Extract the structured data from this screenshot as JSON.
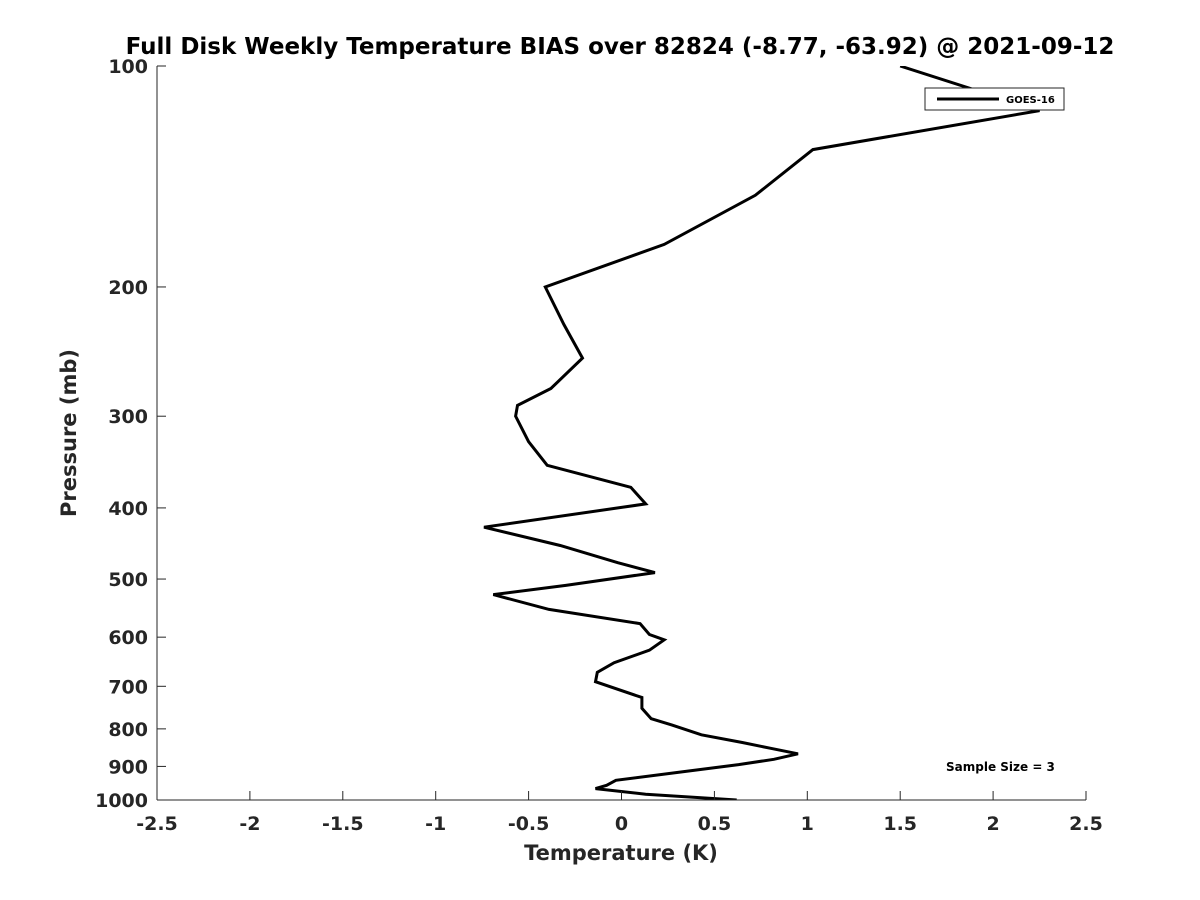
{
  "chart_data": {
    "type": "line",
    "title": "Full Disk Weekly Temperature BIAS over 82824 (-8.77, -63.92) @ 2021-09-12",
    "xlabel": "Temperature (K)",
    "ylabel": "Pressure (mb)",
    "xlim": [
      -2.5,
      2.5
    ],
    "ylim": [
      100,
      1000
    ],
    "y_scale": "log",
    "y_reversed": true,
    "grid": false,
    "x_ticks": [
      -2.5,
      -2,
      -1.5,
      -1,
      -0.5,
      0,
      0.5,
      1,
      1.5,
      2,
      2.5
    ],
    "x_tick_labels": [
      "-2.5",
      "-2",
      "-1.5",
      "-1",
      "-0.5",
      "0",
      "0.5",
      "1",
      "1.5",
      "2",
      "2.5"
    ],
    "y_ticks": [
      100,
      200,
      300,
      400,
      500,
      600,
      700,
      800,
      900,
      1000
    ],
    "y_tick_labels": [
      "100",
      "200",
      "300",
      "400",
      "500",
      "600",
      "700",
      "800",
      "900",
      "1000"
    ],
    "legend_position": "top-right",
    "annotation": "Sample Size = 3",
    "series": [
      {
        "name": "GOES-16",
        "color": "#000000",
        "points": [
          {
            "x": 1.5,
            "y": 100
          },
          {
            "x": 2.25,
            "y": 115
          },
          {
            "x": 1.03,
            "y": 130
          },
          {
            "x": 0.72,
            "y": 150
          },
          {
            "x": 0.23,
            "y": 175
          },
          {
            "x": -0.41,
            "y": 200
          },
          {
            "x": -0.31,
            "y": 225
          },
          {
            "x": -0.21,
            "y": 250
          },
          {
            "x": -0.38,
            "y": 275
          },
          {
            "x": -0.56,
            "y": 290
          },
          {
            "x": -0.57,
            "y": 300
          },
          {
            "x": -0.5,
            "y": 325
          },
          {
            "x": -0.4,
            "y": 350
          },
          {
            "x": 0.05,
            "y": 375
          },
          {
            "x": 0.13,
            "y": 395
          },
          {
            "x": -0.74,
            "y": 425
          },
          {
            "x": -0.33,
            "y": 450
          },
          {
            "x": -0.02,
            "y": 475
          },
          {
            "x": 0.18,
            "y": 490
          },
          {
            "x": -0.3,
            "y": 510
          },
          {
            "x": -0.69,
            "y": 525
          },
          {
            "x": -0.39,
            "y": 550
          },
          {
            "x": 0.1,
            "y": 575
          },
          {
            "x": 0.15,
            "y": 595
          },
          {
            "x": 0.23,
            "y": 605
          },
          {
            "x": 0.15,
            "y": 625
          },
          {
            "x": -0.04,
            "y": 650
          },
          {
            "x": -0.13,
            "y": 670
          },
          {
            "x": -0.14,
            "y": 690
          },
          {
            "x": 0.11,
            "y": 725
          },
          {
            "x": 0.11,
            "y": 750
          },
          {
            "x": 0.16,
            "y": 775
          },
          {
            "x": 0.27,
            "y": 790
          },
          {
            "x": 0.43,
            "y": 815
          },
          {
            "x": 0.65,
            "y": 835
          },
          {
            "x": 0.8,
            "y": 850
          },
          {
            "x": 0.95,
            "y": 865
          },
          {
            "x": 0.82,
            "y": 880
          },
          {
            "x": 0.63,
            "y": 895
          },
          {
            "x": 0.33,
            "y": 915
          },
          {
            "x": -0.03,
            "y": 940
          },
          {
            "x": -0.08,
            "y": 955
          },
          {
            "x": -0.14,
            "y": 965
          },
          {
            "x": 0.13,
            "y": 982
          },
          {
            "x": 0.62,
            "y": 1000
          }
        ]
      }
    ]
  }
}
